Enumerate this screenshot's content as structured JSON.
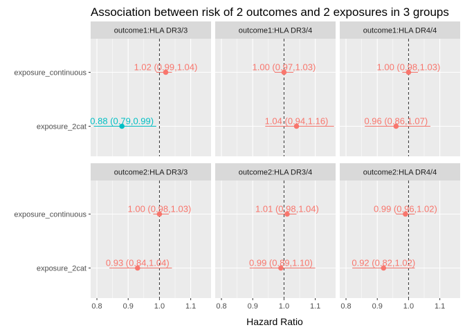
{
  "chart_data": {
    "type": "scatter",
    "title": "Association between risk of 2 outcomes and 2 exposures in 3 groups",
    "xlabel": "Hazard Ratio",
    "ylabel": "",
    "xlim": [
      0.78,
      1.165
    ],
    "x_ticks": [
      "0.8",
      "0.9",
      "1.0",
      "1.1"
    ],
    "reference_line": 1.0,
    "grid": true,
    "legend": "none",
    "colors": {
      "significant": "#00BFC4",
      "not_significant": "#F8766D",
      "panel_bg": "#EBEBEB",
      "strip_bg": "#D9D9D9"
    },
    "row_strips": [
      "outcome1",
      "outcome2"
    ],
    "col_strips": [
      "HLA DR3/3",
      "HLA DR3/4",
      "HLA DR4/4"
    ],
    "categories": [
      "exposure_continuous",
      "exposure_2cat"
    ],
    "panels": [
      {
        "strip": "outcome1:HLA DR3/3",
        "points": [
          {
            "category": "exposure_continuous",
            "hr": 1.02,
            "lo": 0.99,
            "hi": 1.04,
            "label": "1.02 (0.99,1.04)",
            "significant": false
          },
          {
            "category": "exposure_2cat",
            "hr": 0.88,
            "lo": 0.79,
            "hi": 0.99,
            "label": "0.88 (0.79,0.99)",
            "significant": true
          }
        ]
      },
      {
        "strip": "outcome1:HLA DR3/4",
        "points": [
          {
            "category": "exposure_continuous",
            "hr": 1.0,
            "lo": 0.97,
            "hi": 1.03,
            "label": "1.00 (0.97,1.03)",
            "significant": false
          },
          {
            "category": "exposure_2cat",
            "hr": 1.04,
            "lo": 0.94,
            "hi": 1.16,
            "label": "1.04 (0.94,1.16)",
            "significant": false
          }
        ]
      },
      {
        "strip": "outcome1:HLA DR4/4",
        "points": [
          {
            "category": "exposure_continuous",
            "hr": 1.0,
            "lo": 0.98,
            "hi": 1.03,
            "label": "1.00 (0.98,1.03)",
            "significant": false
          },
          {
            "category": "exposure_2cat",
            "hr": 0.96,
            "lo": 0.86,
            "hi": 1.07,
            "label": "0.96 (0.86,1.07)",
            "significant": false
          }
        ]
      },
      {
        "strip": "outcome2:HLA DR3/3",
        "points": [
          {
            "category": "exposure_continuous",
            "hr": 1.0,
            "lo": 0.98,
            "hi": 1.03,
            "label": "1.00 (0.98,1.03)",
            "significant": false
          },
          {
            "category": "exposure_2cat",
            "hr": 0.93,
            "lo": 0.84,
            "hi": 1.04,
            "label": "0.93 (0.84,1.04)",
            "significant": false
          }
        ]
      },
      {
        "strip": "outcome2:HLA DR3/4",
        "points": [
          {
            "category": "exposure_continuous",
            "hr": 1.01,
            "lo": 0.98,
            "hi": 1.04,
            "label": "1.01 (0.98,1.04)",
            "significant": false
          },
          {
            "category": "exposure_2cat",
            "hr": 0.99,
            "lo": 0.89,
            "hi": 1.1,
            "label": "0.99 (0.89,1.10)",
            "significant": false
          }
        ]
      },
      {
        "strip": "outcome2:HLA DR4/4",
        "points": [
          {
            "category": "exposure_continuous",
            "hr": 0.99,
            "lo": 0.96,
            "hi": 1.02,
            "label": "0.99 (0.96,1.02)",
            "significant": false
          },
          {
            "category": "exposure_2cat",
            "hr": 0.92,
            "lo": 0.82,
            "hi": 1.02,
            "label": "0.92 (0.82,1.02)",
            "significant": false
          }
        ]
      }
    ]
  }
}
